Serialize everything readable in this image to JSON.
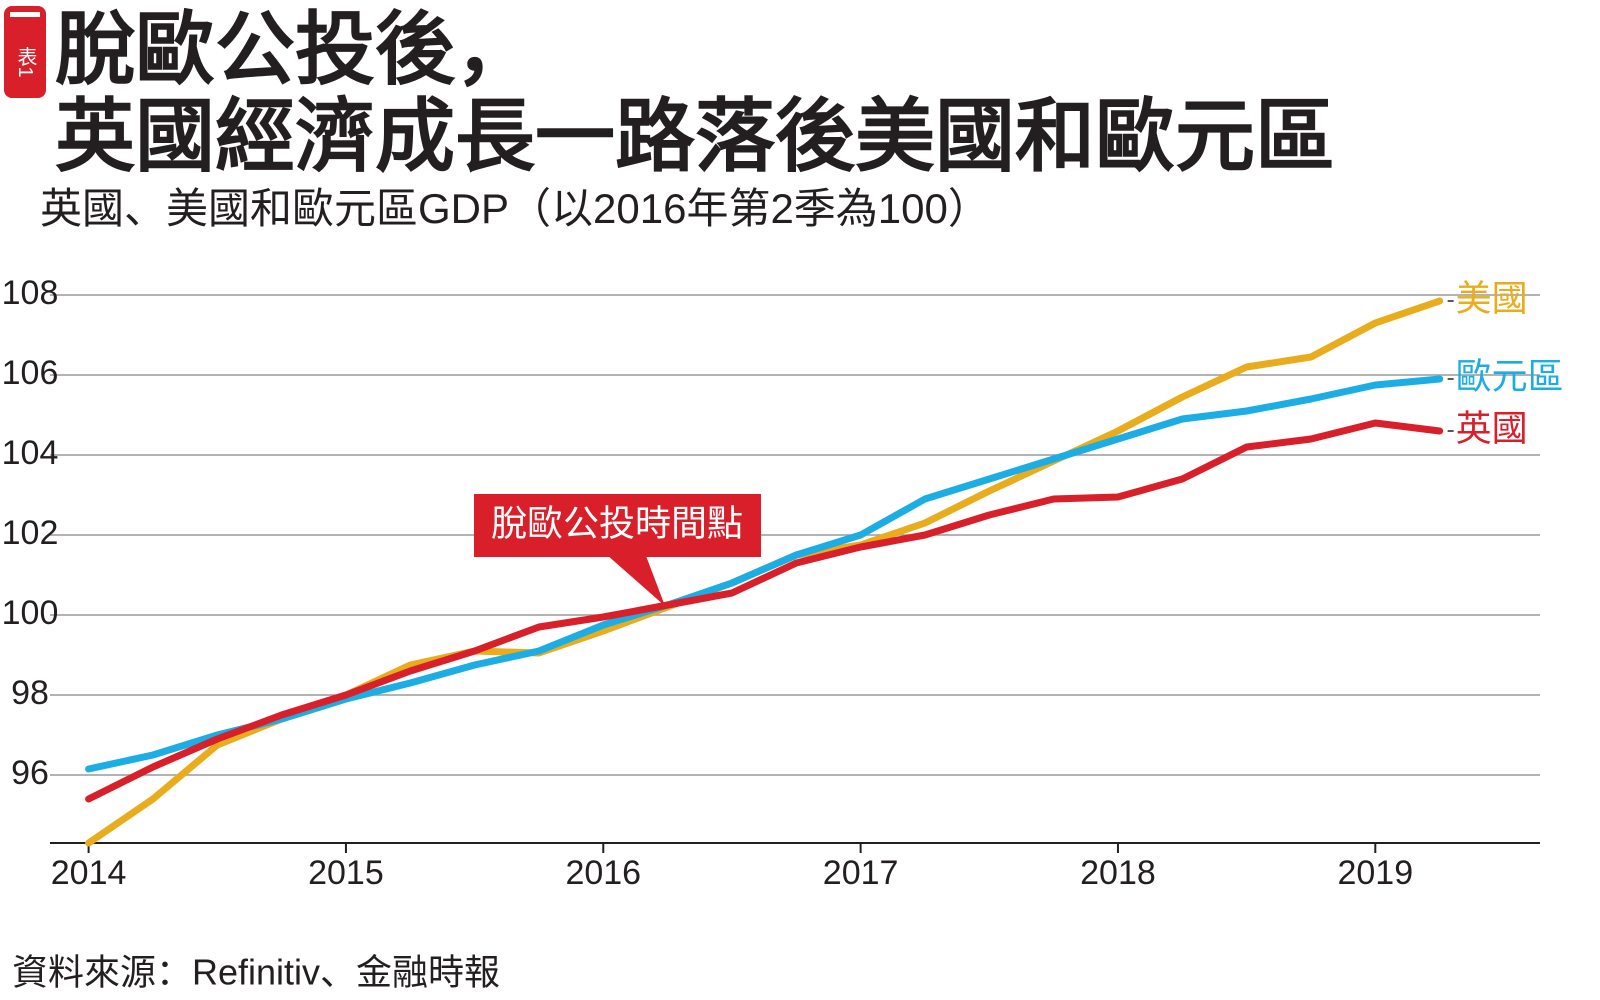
{
  "chart_data": {
    "type": "line",
    "badge": "表1",
    "title_lines": [
      "脫歐公投後，",
      "英國經濟成長一路落後美國和歐元區"
    ],
    "subtitle": "英國、美國和歐元區GDP（以2016年第2季為100）",
    "annotation": "脫歐公投時間點",
    "source": "資料來源：Refinitiv、金融時報",
    "x": [
      2014,
      2014.25,
      2014.5,
      2014.75,
      2015,
      2015.25,
      2015.5,
      2015.75,
      2016,
      2016.25,
      2016.5,
      2016.75,
      2017,
      2017.25,
      2017.5,
      2017.75,
      2018,
      2018.25,
      2018.5,
      2018.75,
      2019,
      2019.25
    ],
    "xlim": [
      2013.85,
      2019.64
    ],
    "xticks": [
      2014,
      2015,
      2016,
      2017,
      2018,
      2019
    ],
    "ylim": [
      94.3,
      108.4
    ],
    "yticks": [
      96,
      98,
      100,
      102,
      104,
      106,
      108
    ],
    "grid": true,
    "series": [
      {
        "name": "美國",
        "color": "#e8ac1c",
        "values": [
          94.3,
          95.4,
          96.75,
          97.4,
          98.0,
          98.75,
          99.1,
          99.05,
          99.6,
          100.2,
          100.8,
          101.5,
          101.75,
          102.3,
          103.1,
          103.85,
          104.6,
          105.45,
          106.2,
          106.45,
          107.3,
          107.85
        ]
      },
      {
        "name": "歐元區",
        "color": "#1badE4",
        "values": [
          96.15,
          96.5,
          97.0,
          97.4,
          97.9,
          98.3,
          98.75,
          99.1,
          99.75,
          100.25,
          100.8,
          101.5,
          102.0,
          102.9,
          103.4,
          103.9,
          104.4,
          104.9,
          105.1,
          105.4,
          105.75,
          105.9
        ]
      },
      {
        "name": "英國",
        "color": "#d81f2a",
        "values": [
          95.4,
          96.2,
          96.9,
          97.5,
          98.0,
          98.6,
          99.1,
          99.7,
          99.95,
          100.25,
          100.55,
          101.3,
          101.7,
          102.0,
          102.5,
          102.9,
          102.95,
          103.4,
          104.2,
          104.4,
          104.8,
          104.6
        ]
      }
    ]
  }
}
